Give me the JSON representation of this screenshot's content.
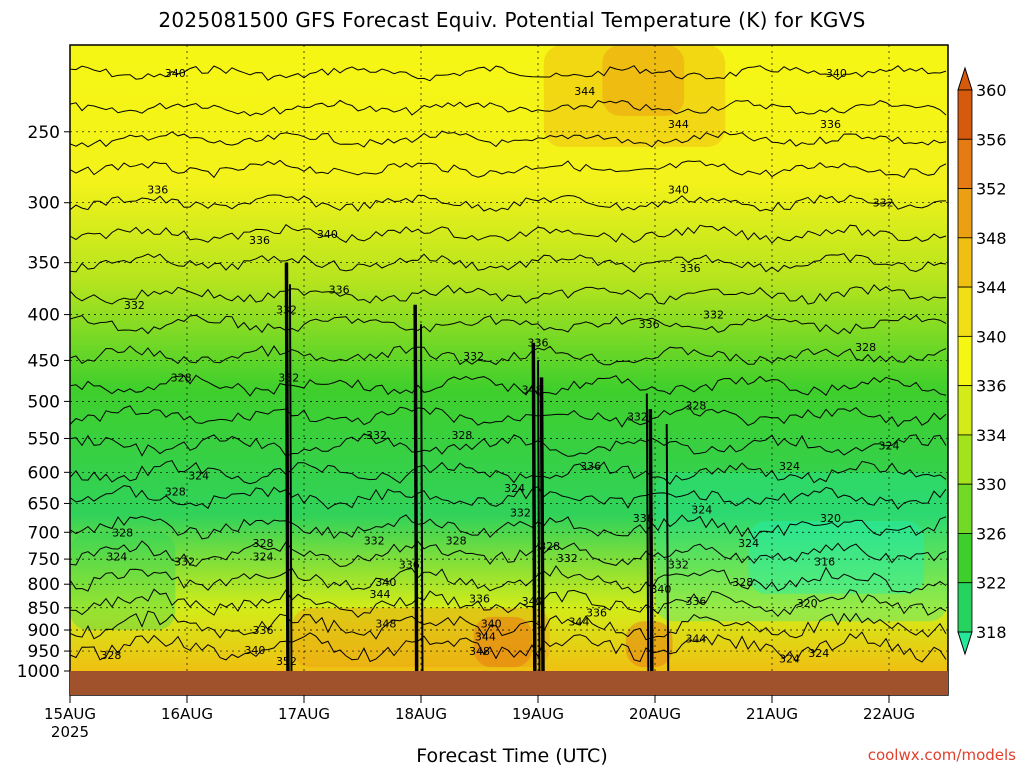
{
  "chart_data": {
    "type": "heatmap",
    "title": "2025081500 GFS Forecast Equiv. Potential Temperature (K) for KGVS",
    "xlabel": "Forecast Time (UTC)",
    "ylabel": "",
    "x_ticks": [
      "15AUG",
      "16AUG",
      "17AUG",
      "18AUG",
      "19AUG",
      "20AUG",
      "21AUG",
      "22AUG"
    ],
    "x_tick_sublabel": "2025",
    "xlim_days": [
      0,
      7.5
    ],
    "y_ticks": [
      250,
      300,
      350,
      400,
      450,
      500,
      550,
      600,
      650,
      700,
      750,
      800,
      850,
      900,
      950,
      1000
    ],
    "ylim": [
      200,
      1000
    ],
    "y_scale": "log-pressure (reversed)",
    "grid": true,
    "colorbar": {
      "levels": [
        318,
        322,
        326,
        330,
        334,
        336,
        340,
        344,
        348,
        352,
        356,
        360
      ],
      "colors": [
        "#26e89a",
        "#25d35e",
        "#3fcf2c",
        "#73d927",
        "#a3e31c",
        "#d3ec19",
        "#f6f614",
        "#f2de14",
        "#efc012",
        "#eb9f12",
        "#e57b12",
        "#d65a0e"
      ]
    },
    "contour_labels": [
      {
        "t": 0.9,
        "p": 215,
        "value": "340"
      },
      {
        "t": 0.75,
        "p": 290,
        "value": "336"
      },
      {
        "t": 1.62,
        "p": 330,
        "value": "336"
      },
      {
        "t": 2.2,
        "p": 325,
        "value": "340"
      },
      {
        "t": 2.3,
        "p": 375,
        "value": "336"
      },
      {
        "t": 0.55,
        "p": 390,
        "value": "332"
      },
      {
        "t": 1.85,
        "p": 395,
        "value": "332"
      },
      {
        "t": 4.4,
        "p": 225,
        "value": "344"
      },
      {
        "t": 3.45,
        "p": 445,
        "value": "332"
      },
      {
        "t": 4.0,
        "p": 430,
        "value": "336"
      },
      {
        "t": 3.95,
        "p": 485,
        "value": "348"
      },
      {
        "t": 5.2,
        "p": 245,
        "value": "344"
      },
      {
        "t": 5.2,
        "p": 290,
        "value": "340"
      },
      {
        "t": 5.3,
        "p": 355,
        "value": "336"
      },
      {
        "t": 5.5,
        "p": 400,
        "value": "332"
      },
      {
        "t": 4.95,
        "p": 410,
        "value": "336"
      },
      {
        "t": 6.55,
        "p": 215,
        "value": "340"
      },
      {
        "t": 6.5,
        "p": 245,
        "value": "336"
      },
      {
        "t": 6.95,
        "p": 300,
        "value": "332"
      },
      {
        "t": 6.8,
        "p": 435,
        "value": "328"
      },
      {
        "t": 0.95,
        "p": 470,
        "value": "328"
      },
      {
        "t": 1.87,
        "p": 470,
        "value": "332"
      },
      {
        "t": 2.62,
        "p": 545,
        "value": "332"
      },
      {
        "t": 3.35,
        "p": 545,
        "value": "328"
      },
      {
        "t": 4.85,
        "p": 520,
        "value": "332"
      },
      {
        "t": 5.35,
        "p": 505,
        "value": "328"
      },
      {
        "t": 7.0,
        "p": 560,
        "value": "324"
      },
      {
        "t": 6.15,
        "p": 590,
        "value": "324"
      },
      {
        "t": 4.45,
        "p": 590,
        "value": "336"
      },
      {
        "t": 1.1,
        "p": 605,
        "value": "324"
      },
      {
        "t": 0.9,
        "p": 630,
        "value": "328"
      },
      {
        "t": 3.8,
        "p": 625,
        "value": "324"
      },
      {
        "t": 3.85,
        "p": 665,
        "value": "332"
      },
      {
        "t": 5.4,
        "p": 660,
        "value": "324"
      },
      {
        "t": 4.9,
        "p": 675,
        "value": "336"
      },
      {
        "t": 6.5,
        "p": 675,
        "value": "320"
      },
      {
        "t": 0.45,
        "p": 700,
        "value": "328"
      },
      {
        "t": 1.65,
        "p": 720,
        "value": "328"
      },
      {
        "t": 2.6,
        "p": 715,
        "value": "332"
      },
      {
        "t": 3.3,
        "p": 715,
        "value": "328"
      },
      {
        "t": 4.1,
        "p": 725,
        "value": "328"
      },
      {
        "t": 5.8,
        "p": 720,
        "value": "324"
      },
      {
        "t": 0.4,
        "p": 745,
        "value": "324"
      },
      {
        "t": 1.65,
        "p": 745,
        "value": "324"
      },
      {
        "t": 4.25,
        "p": 748,
        "value": "332"
      },
      {
        "t": 0.98,
        "p": 755,
        "value": "332"
      },
      {
        "t": 6.45,
        "p": 755,
        "value": "316"
      },
      {
        "t": 2.9,
        "p": 760,
        "value": "336"
      },
      {
        "t": 5.2,
        "p": 760,
        "value": "332"
      },
      {
        "t": 2.7,
        "p": 795,
        "value": "340"
      },
      {
        "t": 5.75,
        "p": 795,
        "value": "328"
      },
      {
        "t": 5.05,
        "p": 810,
        "value": "340"
      },
      {
        "t": 2.65,
        "p": 820,
        "value": "344"
      },
      {
        "t": 3.5,
        "p": 830,
        "value": "336"
      },
      {
        "t": 3.95,
        "p": 835,
        "value": "340"
      },
      {
        "t": 5.35,
        "p": 835,
        "value": "336"
      },
      {
        "t": 6.3,
        "p": 840,
        "value": "320"
      },
      {
        "t": 4.5,
        "p": 860,
        "value": "336"
      },
      {
        "t": 4.35,
        "p": 880,
        "value": "344"
      },
      {
        "t": 2.7,
        "p": 885,
        "value": "348"
      },
      {
        "t": 3.6,
        "p": 885,
        "value": "340"
      },
      {
        "t": 1.65,
        "p": 900,
        "value": "336"
      },
      {
        "t": 3.55,
        "p": 915,
        "value": "344"
      },
      {
        "t": 5.35,
        "p": 920,
        "value": "344"
      },
      {
        "t": 1.58,
        "p": 948,
        "value": "340"
      },
      {
        "t": 3.5,
        "p": 950,
        "value": "348"
      },
      {
        "t": 0.35,
        "p": 960,
        "value": "328"
      },
      {
        "t": 6.4,
        "p": 955,
        "value": "324"
      },
      {
        "t": 6.15,
        "p": 968,
        "value": "324"
      },
      {
        "t": 1.85,
        "p": 975,
        "value": "352"
      }
    ]
  },
  "credit": "coolwx.com/models"
}
